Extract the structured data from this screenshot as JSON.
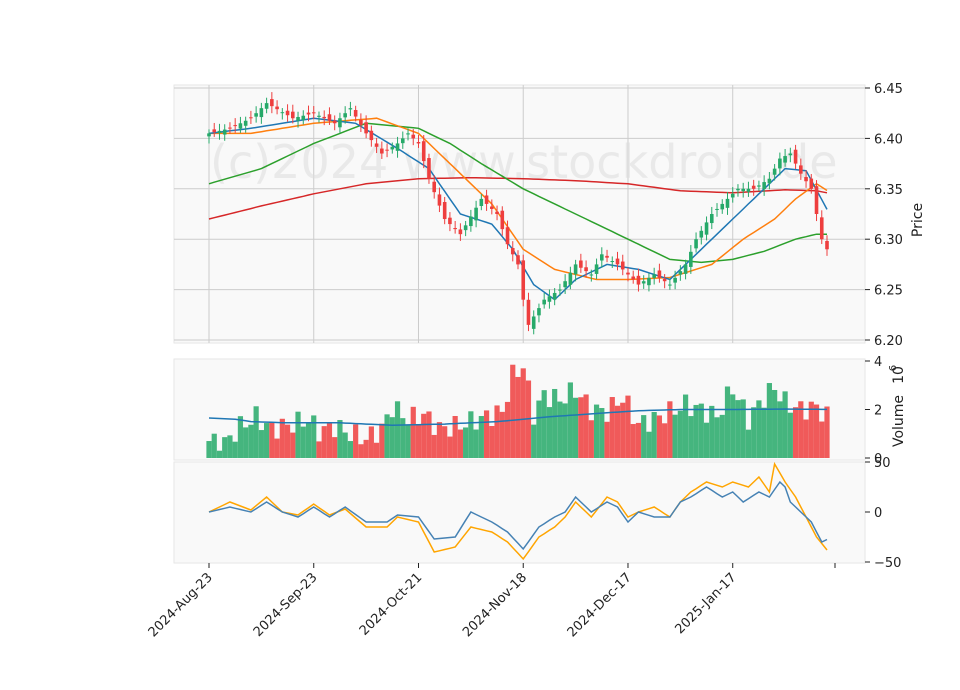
{
  "chart_data": {
    "type": "candlestick",
    "watermark": "(c)2024 www.stockdroid.de",
    "price_axis": {
      "label": "Price",
      "ylim": [
        6.2,
        6.45
      ],
      "ticks": [
        "6.20",
        "6.25",
        "6.30",
        "6.35",
        "6.40",
        "6.45"
      ]
    },
    "volume_axis": {
      "label": "Volume",
      "multiplier": "10",
      "exponent": "6",
      "ylim": [
        0,
        4
      ],
      "ticks": [
        "0",
        "2",
        "4"
      ]
    },
    "osc_axis": {
      "ylim": [
        -50,
        50
      ],
      "ticks": [
        "−50",
        "0",
        "50"
      ]
    },
    "x_ticks": [
      "2024-Aug-23",
      "2024-Sep-23",
      "2024-Oct-21",
      "2024-Nov-18",
      "2024-Dec-17",
      "2025-Jan-17"
    ],
    "x_tick_index": [
      0,
      20,
      40,
      60,
      80,
      100
    ],
    "n_bars": 119,
    "colors": {
      "up": "#26a969",
      "down": "#ee3e3e",
      "ma_fast": "#1f77b4",
      "ma_mid": "#ff7f0e",
      "ma_slow": "#2ca02c",
      "ma_long": "#d62728",
      "vol_ma": "#1f77b4",
      "osc1": "#4682b4",
      "osc2": "#ffa500",
      "grid": "#cccccc",
      "panel": "#f9f9f9"
    },
    "close_anchors": [
      [
        0,
        6.405
      ],
      [
        4,
        6.41
      ],
      [
        8,
        6.42
      ],
      [
        11,
        6.435
      ],
      [
        16,
        6.42
      ],
      [
        20,
        6.425
      ],
      [
        24,
        6.415
      ],
      [
        27,
        6.43
      ],
      [
        30,
        6.405
      ],
      [
        33,
        6.385
      ],
      [
        36,
        6.395
      ],
      [
        38,
        6.405
      ],
      [
        40,
        6.395
      ],
      [
        42,
        6.36
      ],
      [
        45,
        6.32
      ],
      [
        48,
        6.305
      ],
      [
        52,
        6.34
      ],
      [
        55,
        6.325
      ],
      [
        57,
        6.295
      ],
      [
        59,
        6.275
      ],
      [
        60,
        6.24
      ],
      [
        61,
        6.215
      ],
      [
        64,
        6.24
      ],
      [
        67,
        6.25
      ],
      [
        70,
        6.275
      ],
      [
        73,
        6.265
      ],
      [
        75,
        6.285
      ],
      [
        78,
        6.275
      ],
      [
        80,
        6.265
      ],
      [
        82,
        6.255
      ],
      [
        85,
        6.265
      ],
      [
        88,
        6.255
      ],
      [
        91,
        6.275
      ],
      [
        93,
        6.3
      ],
      [
        96,
        6.325
      ],
      [
        98,
        6.335
      ],
      [
        101,
        6.35
      ],
      [
        104,
        6.35
      ],
      [
        107,
        6.36
      ],
      [
        109,
        6.38
      ],
      [
        111,
        6.385
      ],
      [
        113,
        6.365
      ],
      [
        115,
        6.35
      ],
      [
        117,
        6.3
      ],
      [
        119,
        6.28
      ]
    ],
    "ma_fast_anchors": [
      [
        0,
        6.405
      ],
      [
        8,
        6.41
      ],
      [
        20,
        6.42
      ],
      [
        28,
        6.415
      ],
      [
        36,
        6.39
      ],
      [
        42,
        6.37
      ],
      [
        48,
        6.325
      ],
      [
        54,
        6.315
      ],
      [
        58,
        6.29
      ],
      [
        62,
        6.255
      ],
      [
        66,
        6.24
      ],
      [
        70,
        6.26
      ],
      [
        76,
        6.275
      ],
      [
        82,
        6.27
      ],
      [
        88,
        6.26
      ],
      [
        94,
        6.29
      ],
      [
        100,
        6.32
      ],
      [
        106,
        6.35
      ],
      [
        110,
        6.37
      ],
      [
        114,
        6.368
      ],
      [
        119,
        6.32
      ]
    ],
    "ma_mid_anchors": [
      [
        0,
        6.405
      ],
      [
        8,
        6.405
      ],
      [
        20,
        6.415
      ],
      [
        32,
        6.42
      ],
      [
        40,
        6.405
      ],
      [
        46,
        6.375
      ],
      [
        54,
        6.335
      ],
      [
        60,
        6.29
      ],
      [
        66,
        6.27
      ],
      [
        74,
        6.26
      ],
      [
        80,
        6.26
      ],
      [
        88,
        6.262
      ],
      [
        96,
        6.275
      ],
      [
        102,
        6.3
      ],
      [
        108,
        6.32
      ],
      [
        112,
        6.34
      ],
      [
        116,
        6.355
      ],
      [
        119,
        6.345
      ]
    ],
    "ma_slow_anchors": [
      [
        0,
        6.355
      ],
      [
        10,
        6.37
      ],
      [
        20,
        6.395
      ],
      [
        30,
        6.415
      ],
      [
        40,
        6.41
      ],
      [
        46,
        6.395
      ],
      [
        52,
        6.375
      ],
      [
        60,
        6.35
      ],
      [
        70,
        6.325
      ],
      [
        80,
        6.3
      ],
      [
        88,
        6.28
      ],
      [
        94,
        6.277
      ],
      [
        100,
        6.28
      ],
      [
        106,
        6.288
      ],
      [
        112,
        6.3
      ],
      [
        116,
        6.305
      ],
      [
        119,
        6.305
      ]
    ],
    "ma_long_anchors": [
      [
        0,
        6.32
      ],
      [
        10,
        6.333
      ],
      [
        20,
        6.345
      ],
      [
        30,
        6.355
      ],
      [
        40,
        6.36
      ],
      [
        50,
        6.361
      ],
      [
        60,
        6.36
      ],
      [
        70,
        6.358
      ],
      [
        80,
        6.355
      ],
      [
        90,
        6.348
      ],
      [
        100,
        6.346
      ],
      [
        110,
        6.349
      ],
      [
        116,
        6.348
      ],
      [
        119,
        6.345
      ]
    ],
    "volume_anchors": [
      [
        0,
        0.7
      ],
      [
        3,
        0.6
      ],
      [
        6,
        1.3
      ],
      [
        9,
        1.7
      ],
      [
        12,
        1.2
      ],
      [
        16,
        1.4
      ],
      [
        19,
        1.6
      ],
      [
        21,
        1.1
      ],
      [
        24,
        1.3
      ],
      [
        27,
        1.0
      ],
      [
        30,
        0.8
      ],
      [
        33,
        1.2
      ],
      [
        35,
        2.1
      ],
      [
        38,
        1.6
      ],
      [
        41,
        1.8
      ],
      [
        44,
        1.2
      ],
      [
        47,
        1.3
      ],
      [
        50,
        1.5
      ],
      [
        53,
        1.7
      ],
      [
        56,
        1.9
      ],
      [
        58,
        3.4
      ],
      [
        60,
        3.8
      ],
      [
        62,
        1.8
      ],
      [
        64,
        2.6
      ],
      [
        67,
        2.4
      ],
      [
        70,
        2.8
      ],
      [
        73,
        2.0
      ],
      [
        76,
        1.9
      ],
      [
        79,
        2.5
      ],
      [
        82,
        1.4
      ],
      [
        85,
        1.6
      ],
      [
        88,
        1.9
      ],
      [
        91,
        2.2
      ],
      [
        94,
        2.0
      ],
      [
        97,
        1.7
      ],
      [
        100,
        2.9
      ],
      [
        103,
        1.6
      ],
      [
        106,
        2.5
      ],
      [
        108,
        2.9
      ],
      [
        110,
        2.3
      ],
      [
        113,
        2.0
      ],
      [
        116,
        2.1
      ],
      [
        119,
        1.5
      ]
    ],
    "vol_ma_anchors": [
      [
        0,
        1.65
      ],
      [
        5,
        1.6
      ],
      [
        8,
        1.5
      ],
      [
        15,
        1.45
      ],
      [
        25,
        1.45
      ],
      [
        35,
        1.35
      ],
      [
        45,
        1.4
      ],
      [
        55,
        1.5
      ],
      [
        65,
        1.7
      ],
      [
        75,
        1.85
      ],
      [
        82,
        1.95
      ],
      [
        90,
        2.0
      ],
      [
        100,
        2.0
      ],
      [
        110,
        2.02
      ],
      [
        119,
        2.0
      ]
    ],
    "osc1_anchors": [
      [
        0,
        0
      ],
      [
        4,
        5
      ],
      [
        8,
        0
      ],
      [
        11,
        10
      ],
      [
        14,
        0
      ],
      [
        17,
        -5
      ],
      [
        20,
        5
      ],
      [
        23,
        -5
      ],
      [
        26,
        5
      ],
      [
        30,
        -10
      ],
      [
        34,
        -10
      ],
      [
        36,
        -3
      ],
      [
        40,
        -5
      ],
      [
        43,
        -27
      ],
      [
        47,
        -25
      ],
      [
        50,
        0
      ],
      [
        54,
        -10
      ],
      [
        57,
        -20
      ],
      [
        60,
        -37
      ],
      [
        63,
        -15
      ],
      [
        66,
        -5
      ],
      [
        68,
        0
      ],
      [
        70,
        15
      ],
      [
        73,
        0
      ],
      [
        76,
        10
      ],
      [
        78,
        5
      ],
      [
        80,
        -10
      ],
      [
        82,
        0
      ],
      [
        85,
        -5
      ],
      [
        88,
        -5
      ],
      [
        90,
        10
      ],
      [
        92,
        15
      ],
      [
        95,
        25
      ],
      [
        98,
        15
      ],
      [
        100,
        20
      ],
      [
        102,
        10
      ],
      [
        105,
        20
      ],
      [
        107,
        15
      ],
      [
        109,
        30
      ],
      [
        110,
        25
      ],
      [
        111,
        10
      ],
      [
        113,
        0
      ],
      [
        115,
        -10
      ],
      [
        117,
        -30
      ],
      [
        119,
        -25
      ]
    ],
    "osc2_anchors": [
      [
        0,
        0
      ],
      [
        4,
        10
      ],
      [
        8,
        2
      ],
      [
        11,
        15
      ],
      [
        14,
        0
      ],
      [
        17,
        -3
      ],
      [
        20,
        8
      ],
      [
        23,
        -3
      ],
      [
        26,
        3
      ],
      [
        30,
        -15
      ],
      [
        34,
        -15
      ],
      [
        36,
        -5
      ],
      [
        40,
        -10
      ],
      [
        43,
        -40
      ],
      [
        47,
        -35
      ],
      [
        50,
        -15
      ],
      [
        54,
        -20
      ],
      [
        57,
        -30
      ],
      [
        60,
        -47
      ],
      [
        63,
        -25
      ],
      [
        66,
        -15
      ],
      [
        68,
        -5
      ],
      [
        70,
        10
      ],
      [
        73,
        -5
      ],
      [
        76,
        15
      ],
      [
        78,
        10
      ],
      [
        80,
        -5
      ],
      [
        82,
        0
      ],
      [
        85,
        5
      ],
      [
        88,
        -5
      ],
      [
        90,
        10
      ],
      [
        92,
        20
      ],
      [
        95,
        30
      ],
      [
        98,
        25
      ],
      [
        100,
        30
      ],
      [
        103,
        25
      ],
      [
        105,
        35
      ],
      [
        107,
        20
      ],
      [
        108,
        48
      ],
      [
        110,
        30
      ],
      [
        112,
        15
      ],
      [
        114,
        -5
      ],
      [
        116,
        -25
      ],
      [
        118,
        -38
      ],
      [
        119,
        -38
      ]
    ]
  }
}
